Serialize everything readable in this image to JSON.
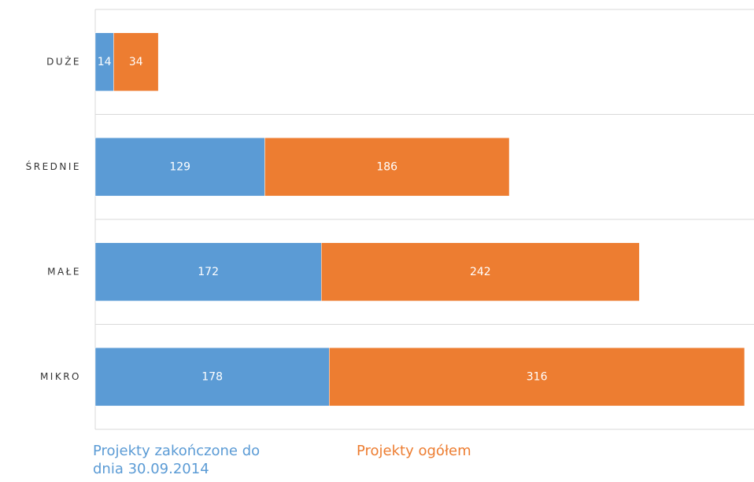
{
  "chart_data": {
    "type": "stacked_hbar",
    "categories": [
      "DUŻE",
      "ŚREDNIE",
      "MAŁE",
      "MIKRO"
    ],
    "series": [
      {
        "name": "Projekty zakończone do dnia 30.09.2014",
        "color": "#5b9bd5",
        "values": [
          14,
          129,
          172,
          178
        ]
      },
      {
        "name": "Projekty ogółem",
        "color": "#ed7d31",
        "values": [
          34,
          186,
          242,
          316
        ]
      }
    ],
    "xlim": [
      0,
      500
    ],
    "grid": true
  }
}
